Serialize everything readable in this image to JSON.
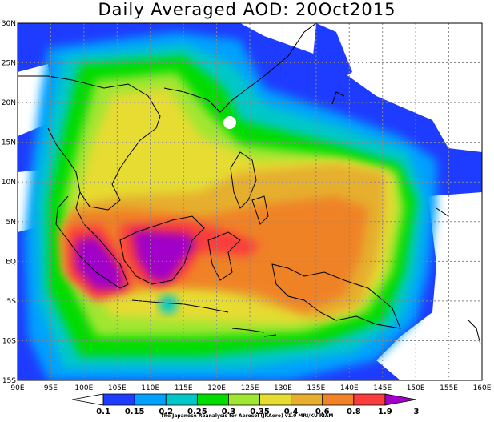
{
  "title": "Daily Averaged AOD: 20Oct2015",
  "credit": "The Japanese Reanalysis for Aerosol (JRAero) v1.0 MRI/KU RIAM",
  "map": {
    "lon_ticks": [
      "90E",
      "95E",
      "100E",
      "105E",
      "110E",
      "115E",
      "120E",
      "125E",
      "130E",
      "135E",
      "140E",
      "145E",
      "150E",
      "155E",
      "160E"
    ],
    "lat_ticks": [
      "30N",
      "25N",
      "20N",
      "15N",
      "10N",
      "5N",
      "EQ",
      "5S",
      "10S",
      "15S"
    ],
    "lon_range": [
      90,
      160
    ],
    "lat_range": [
      -15,
      30
    ]
  },
  "colorbar": {
    "labels": [
      "0.1",
      "0.15",
      "0.2",
      "0.25",
      "0.3",
      "0.35",
      "0.4",
      "0.6",
      "0.8",
      "1.9",
      "3"
    ],
    "colors": [
      "#ffffff",
      "#1e3cff",
      "#00a0ff",
      "#00c8c8",
      "#00dc00",
      "#a0e632",
      "#e6dc32",
      "#e6af2d",
      "#f08228",
      "#fa3c3c",
      "#a000c8"
    ]
  }
}
